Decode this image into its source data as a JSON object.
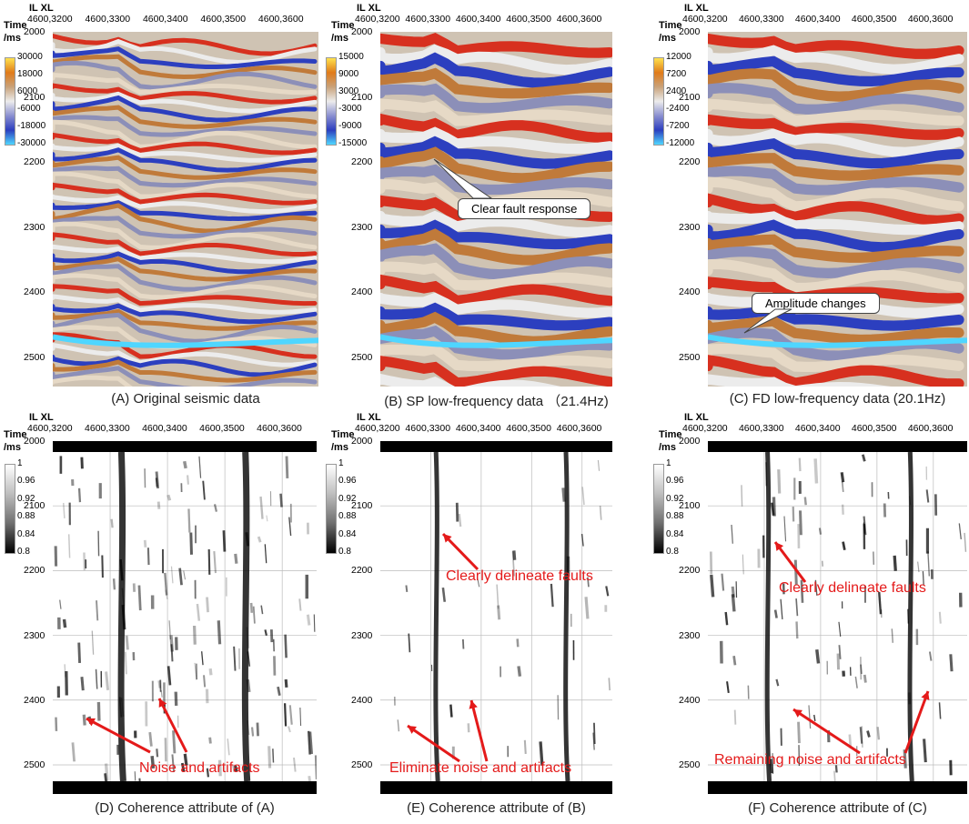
{
  "il_xl_label": "IL XL",
  "time_label_line1": "Time",
  "time_label_line2": "/ms",
  "xticks": [
    "4600,3200",
    "4600,3300",
    "4600,3400",
    "4600,3500",
    "4600,3600"
  ],
  "yticks": [
    "2000",
    "2100",
    "2200",
    "2300",
    "2400",
    "2500"
  ],
  "panels": [
    {
      "caption": "(A) Original seismic data",
      "colorbar": [
        "30000",
        "18000",
        "6000",
        "-6000",
        "-18000",
        "-30000"
      ]
    },
    {
      "caption": "(B) SP low-frequency data （21.4Hz)",
      "colorbar": [
        "15000",
        "9000",
        "3000",
        "-3000",
        "-9000",
        "-15000"
      ],
      "callout": "Clear fault response"
    },
    {
      "caption": "(C) FD low-frequency data (20.1Hz)",
      "colorbar": [
        "12000",
        "7200",
        "2400",
        "-2400",
        "-7200",
        "-12000"
      ],
      "callout": "Amplitude changes"
    },
    {
      "caption": "(D) Coherence attribute of (A)",
      "colorbar": [
        "1",
        "0.96",
        "0.92",
        "0.88",
        "0.84",
        "0.8"
      ],
      "annotation": "Noise and artifacts"
    },
    {
      "caption": "(E) Coherence attribute of (B)",
      "colorbar": [
        "1",
        "0.96",
        "0.92",
        "0.88",
        "0.84",
        "0.8"
      ],
      "annotation_top": "Clearly delineate faults",
      "annotation": "Eliminate noise and artifacts"
    },
    {
      "caption": "(F) Coherence attribute of (C)",
      "colorbar": [
        "1",
        "0.96",
        "0.92",
        "0.88",
        "0.84",
        "0.8"
      ],
      "annotation_top": "Clearly delineate faults",
      "annotation": "Remaining noise and artifacts"
    }
  ],
  "colors": {
    "positive": "#d7301f",
    "negative": "#2c3fbf",
    "peak_pos": "#ffe14d",
    "peak_neg": "#4fd6ff",
    "annotation": "#e41a1a"
  }
}
